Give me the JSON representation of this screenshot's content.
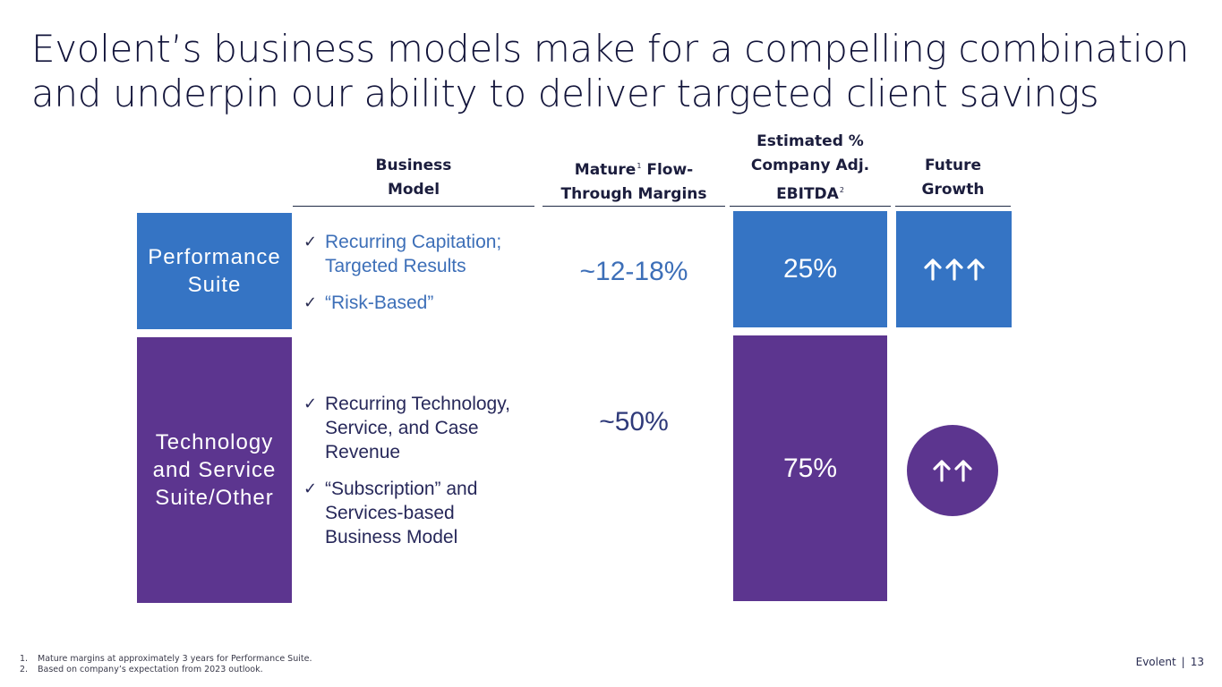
{
  "title": {
    "line1": "Evolent’s business models make for a compelling combination",
    "line2": "and underpin our ability to deliver targeted client savings"
  },
  "columns": {
    "business_model": {
      "line1": "Business",
      "line2": "Model"
    },
    "margins": {
      "line1_a": "Mature",
      "line1_sup": "1",
      "line1_b": " Flow-",
      "line2": "Through Margins"
    },
    "ebitda": {
      "line1": "Estimated %",
      "line2": "Company Adj.",
      "line3_a": "EBITDA",
      "line3_sup": "2"
    },
    "growth": {
      "line1": "Future",
      "line2": "Growth"
    }
  },
  "rows": {
    "performance": {
      "label_line1": "Performance",
      "label_line2": "Suite",
      "bullet1_line1": "Recurring Capitation;",
      "bullet1_line2": "Targeted Results",
      "bullet2_line1": "“Risk-Based”",
      "check": "✓",
      "margin": "~12-18%",
      "ebitda": "25%",
      "growth_icon": "triple-up-arrow-icon",
      "growth_count": 3
    },
    "technology": {
      "label_line1": "Technology",
      "label_line2": "and Service",
      "label_line3": "Suite/Other",
      "bullet1_line1": "Recurring Technology,",
      "bullet1_line2": "Service, and Case",
      "bullet1_line3": "Revenue",
      "bullet2_line1": "“Subscription” and",
      "bullet2_line2": "Services-based",
      "bullet2_line3": "Business Model",
      "check": "✓",
      "margin": "~50%",
      "ebitda": "75%",
      "growth_icon": "double-up-arrow-icon",
      "growth_count": 2
    }
  },
  "footnotes": [
    {
      "num": "1.",
      "text": "Mature margins at approximately 3 years for Performance Suite."
    },
    {
      "num": "2.",
      "text": "Based on company’s expectation from 2023 outlook."
    }
  ],
  "footer": {
    "brand": "Evolent",
    "separator": "|",
    "page": "13"
  },
  "colors": {
    "blue": "#3574c4",
    "purple": "#5c358f",
    "text_dark": "#12143a"
  }
}
